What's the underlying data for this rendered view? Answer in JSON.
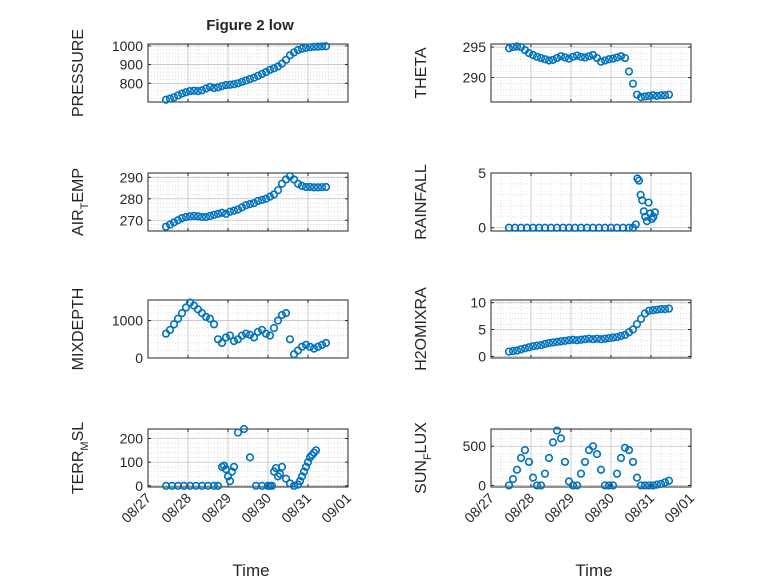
{
  "figure": {
    "title": "Figure 2 low",
    "xlabel": "Time",
    "marker_color": "#0072BD",
    "xticks": [
      "08/27",
      "08/28",
      "08/29",
      "08/30",
      "08/31",
      "09/01"
    ]
  },
  "chart_data": [
    {
      "type": "scatter",
      "ylabel": "PRESSURE",
      "ylim": [
        700,
        1010
      ],
      "yticks": [
        800,
        900,
        1000
      ],
      "xlim": [
        "08/27",
        "09/01"
      ],
      "grid": true,
      "x": [
        0.45,
        0.55,
        0.65,
        0.75,
        0.85,
        0.95,
        1.05,
        1.15,
        1.25,
        1.35,
        1.45,
        1.55,
        1.65,
        1.75,
        1.85,
        1.95,
        2.05,
        2.15,
        2.25,
        2.35,
        2.45,
        2.55,
        2.65,
        2.75,
        2.85,
        2.95,
        3.05,
        3.15,
        3.25,
        3.35,
        3.45,
        3.55,
        3.65,
        3.75,
        3.85,
        3.95,
        4.05,
        4.15,
        4.25,
        4.35,
        4.45
      ],
      "y": [
        712,
        718,
        725,
        735,
        745,
        752,
        758,
        760,
        758,
        762,
        772,
        780,
        775,
        778,
        785,
        790,
        792,
        795,
        800,
        808,
        815,
        823,
        830,
        840,
        850,
        860,
        872,
        880,
        890,
        905,
        925,
        950,
        965,
        978,
        985,
        990,
        993,
        995,
        996,
        997,
        998
      ]
    },
    {
      "type": "scatter",
      "ylabel": "THETA",
      "ylim": [
        286,
        295.5
      ],
      "yticks": [
        290,
        295
      ],
      "xlim": [
        "08/27",
        "09/01"
      ],
      "grid": true,
      "x": [
        0.45,
        0.55,
        0.65,
        0.75,
        0.85,
        0.95,
        1.05,
        1.15,
        1.25,
        1.35,
        1.45,
        1.55,
        1.65,
        1.75,
        1.85,
        1.95,
        2.05,
        2.15,
        2.25,
        2.35,
        2.45,
        2.55,
        2.65,
        2.75,
        2.85,
        2.95,
        3.05,
        3.15,
        3.25,
        3.35,
        3.45,
        3.55,
        3.65,
        3.75,
        3.85,
        3.95,
        4.05,
        4.15,
        4.25,
        4.35,
        4.45
      ],
      "y": [
        294.8,
        295.0,
        295.1,
        295.0,
        294.5,
        294.0,
        293.7,
        293.4,
        293.2,
        293.0,
        292.8,
        292.9,
        293.2,
        293.5,
        293.3,
        293.1,
        293.4,
        293.6,
        293.4,
        293.3,
        293.5,
        293.7,
        293.2,
        292.6,
        292.8,
        293.0,
        293.1,
        293.3,
        293.5,
        293.2,
        291.0,
        289.0,
        287.2,
        286.8,
        286.9,
        287.0,
        287.1,
        287.0,
        287.1,
        287.1,
        287.2
      ]
    },
    {
      "type": "scatter",
      "ylabel": "AIR_TEMP",
      "ylim": [
        265,
        292
      ],
      "yticks": [
        270,
        280,
        290
      ],
      "xlim": [
        "08/27",
        "09/01"
      ],
      "grid": true,
      "x": [
        0.45,
        0.55,
        0.65,
        0.75,
        0.85,
        0.95,
        1.05,
        1.15,
        1.25,
        1.35,
        1.45,
        1.55,
        1.65,
        1.75,
        1.85,
        1.95,
        2.05,
        2.15,
        2.25,
        2.35,
        2.45,
        2.55,
        2.65,
        2.75,
        2.85,
        2.95,
        3.05,
        3.15,
        3.25,
        3.35,
        3.45,
        3.55,
        3.65,
        3.75,
        3.85,
        3.95,
        4.05,
        4.15,
        4.25,
        4.35,
        4.45
      ],
      "y": [
        267,
        268,
        269,
        270,
        271,
        271.5,
        271.8,
        272,
        271.8,
        271.5,
        271.5,
        272,
        272.5,
        273,
        273.5,
        273,
        274,
        274.5,
        275,
        276,
        277,
        277.5,
        278,
        279,
        279.5,
        280,
        281,
        282,
        284,
        287,
        289,
        290.5,
        289,
        287,
        286,
        285.5,
        285.5,
        285.3,
        285.3,
        285.4,
        285.5
      ]
    },
    {
      "type": "scatter",
      "ylabel": "RAINFALL",
      "ylim": [
        -0.3,
        5
      ],
      "yticks": [
        0,
        5
      ],
      "xlim": [
        "08/27",
        "09/01"
      ],
      "grid": true,
      "x": [
        0.45,
        0.6,
        0.75,
        0.9,
        1.05,
        1.2,
        1.35,
        1.5,
        1.65,
        1.8,
        1.95,
        2.1,
        2.25,
        2.4,
        2.55,
        2.7,
        2.85,
        3.0,
        3.15,
        3.3,
        3.45,
        3.55,
        3.62,
        3.66,
        3.7,
        3.74,
        3.78,
        3.82,
        3.86,
        3.9,
        3.94,
        3.98,
        4.02,
        4.06,
        4.1
      ],
      "y": [
        0,
        0,
        0,
        0,
        0,
        0,
        0,
        0,
        0,
        0,
        0,
        0,
        0,
        0,
        0,
        0,
        0,
        0,
        0,
        0,
        0,
        0,
        0.3,
        4.5,
        4.3,
        3.0,
        2.5,
        1.5,
        1.0,
        0.6,
        2.3,
        1.3,
        0.8,
        1.0,
        1.4
      ]
    },
    {
      "type": "scatter",
      "ylabel": "MIXDEPTH",
      "ylim": [
        0,
        1550
      ],
      "yticks": [
        0,
        1000
      ],
      "xlim": [
        "08/27",
        "09/01"
      ],
      "grid": true,
      "x": [
        0.45,
        0.55,
        0.65,
        0.75,
        0.85,
        0.95,
        1.05,
        1.15,
        1.25,
        1.35,
        1.45,
        1.55,
        1.65,
        1.75,
        1.85,
        1.95,
        2.05,
        2.15,
        2.25,
        2.35,
        2.45,
        2.55,
        2.65,
        2.75,
        2.85,
        2.95,
        3.05,
        3.15,
        3.25,
        3.35,
        3.45,
        3.55,
        3.65,
        3.75,
        3.85,
        3.95,
        4.05,
        4.15,
        4.25,
        4.35,
        4.45
      ],
      "y": [
        650,
        750,
        900,
        1050,
        1200,
        1350,
        1480,
        1400,
        1300,
        1200,
        1100,
        1050,
        900,
        500,
        400,
        550,
        600,
        450,
        500,
        600,
        650,
        620,
        550,
        700,
        750,
        650,
        600,
        800,
        1000,
        1150,
        1200,
        500,
        100,
        200,
        300,
        350,
        300,
        250,
        300,
        350,
        400
      ]
    },
    {
      "type": "scatter",
      "ylabel": "H2OMIXRA",
      "ylim": [
        -0.3,
        10.5
      ],
      "yticks": [
        0,
        5,
        10
      ],
      "xlim": [
        "08/27",
        "09/01"
      ],
      "grid": true,
      "x": [
        0.45,
        0.55,
        0.65,
        0.75,
        0.85,
        0.95,
        1.05,
        1.15,
        1.25,
        1.35,
        1.45,
        1.55,
        1.65,
        1.75,
        1.85,
        1.95,
        2.05,
        2.15,
        2.25,
        2.35,
        2.45,
        2.55,
        2.65,
        2.75,
        2.85,
        2.95,
        3.05,
        3.15,
        3.25,
        3.35,
        3.45,
        3.55,
        3.65,
        3.75,
        3.85,
        3.95,
        4.05,
        4.15,
        4.25,
        4.35,
        4.45
      ],
      "y": [
        0.9,
        1.0,
        1.1,
        1.3,
        1.5,
        1.7,
        1.9,
        2.0,
        2.1,
        2.3,
        2.5,
        2.6,
        2.7,
        2.8,
        2.9,
        3.0,
        3.1,
        3.0,
        3.1,
        3.2,
        3.3,
        3.2,
        3.3,
        3.2,
        3.3,
        3.4,
        3.5,
        3.6,
        3.8,
        4.0,
        4.5,
        5.0,
        6.0,
        7.0,
        8.0,
        8.5,
        8.6,
        8.7,
        8.8,
        8.8,
        8.9
      ]
    },
    {
      "type": "scatter",
      "ylabel": "TERR_MSL",
      "ylim": [
        -5,
        240
      ],
      "yticks": [
        0,
        100,
        200
      ],
      "xlim": [
        "08/27",
        "09/01"
      ],
      "grid": true,
      "x": [
        0.45,
        0.6,
        0.75,
        0.9,
        1.05,
        1.2,
        1.35,
        1.5,
        1.65,
        1.75,
        1.85,
        1.9,
        1.95,
        2.0,
        2.05,
        2.1,
        2.15,
        2.25,
        2.4,
        2.55,
        2.7,
        2.85,
        3.0,
        3.05,
        3.1,
        3.15,
        3.2,
        3.25,
        3.3,
        3.35,
        3.45,
        3.55,
        3.65,
        3.75,
        3.8,
        3.85,
        3.9,
        3.95,
        4.0,
        4.05,
        4.1,
        4.15,
        4.2
      ],
      "y": [
        0,
        0,
        0,
        0,
        0,
        0,
        0,
        0,
        0,
        0,
        80,
        85,
        70,
        40,
        20,
        60,
        80,
        225,
        240,
        120,
        0,
        0,
        0,
        0,
        0,
        60,
        75,
        40,
        50,
        80,
        30,
        10,
        0,
        5,
        20,
        40,
        60,
        80,
        100,
        120,
        130,
        140,
        150
      ]
    },
    {
      "type": "scatter",
      "ylabel": "SUN_FLUX",
      "ylim": [
        -20,
        720
      ],
      "yticks": [
        0,
        500
      ],
      "xlim": [
        "08/27",
        "09/01"
      ],
      "grid": true,
      "x": [
        0.45,
        0.55,
        0.65,
        0.75,
        0.85,
        0.95,
        1.05,
        1.15,
        1.25,
        1.35,
        1.45,
        1.55,
        1.65,
        1.75,
        1.85,
        1.95,
        2.05,
        2.15,
        2.25,
        2.35,
        2.45,
        2.55,
        2.65,
        2.75,
        2.85,
        2.95,
        3.05,
        3.15,
        3.25,
        3.35,
        3.45,
        3.55,
        3.65,
        3.75,
        3.85,
        3.95,
        4.05,
        4.15,
        4.25,
        4.35,
        4.45
      ],
      "y": [
        0,
        80,
        200,
        350,
        450,
        300,
        100,
        0,
        0,
        150,
        350,
        550,
        700,
        600,
        300,
        50,
        0,
        0,
        150,
        300,
        450,
        500,
        400,
        200,
        0,
        0,
        0,
        150,
        350,
        480,
        450,
        300,
        100,
        0,
        0,
        0,
        0,
        10,
        20,
        40,
        60
      ]
    }
  ]
}
